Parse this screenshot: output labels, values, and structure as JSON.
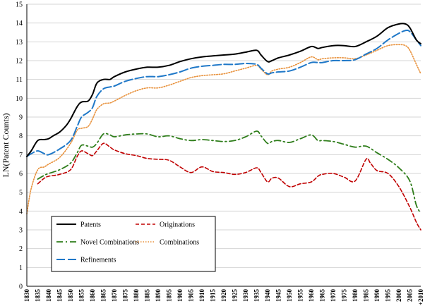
{
  "chart_data": {
    "type": "line",
    "title": "",
    "xlabel": "",
    "ylabel": "LN(Patent Counts)",
    "ylim": [
      0,
      15
    ],
    "yticks": [
      0,
      1,
      2,
      3,
      4,
      5,
      6,
      7,
      8,
      9,
      10,
      11,
      12,
      13,
      14,
      15
    ],
    "xlim": [
      1830,
      2010
    ],
    "xtick_labels": [
      "1830",
      "1835",
      "1840",
      "1845",
      "1850",
      "1855",
      "1860",
      "1865",
      "1870",
      "1875",
      "1880",
      "1885",
      "1890",
      "1895",
      "1900",
      "1905",
      "1910",
      "1915",
      "1920",
      "1925",
      "1930",
      "1935",
      "1940",
      "1945",
      "1950",
      "1955",
      "1960",
      "1965",
      "1970",
      "1975",
      "1980",
      "1985",
      "1990",
      "1995",
      "2000",
      "2005",
      "+2010"
    ],
    "grid": "horizontal",
    "legend_placement": "bottom-left",
    "series": [
      {
        "name": "Patents",
        "color": "#000000",
        "dash": "solid",
        "x": [
          1830,
          1832,
          1835,
          1838,
          1840,
          1842,
          1845,
          1848,
          1850,
          1853,
          1855,
          1858,
          1860,
          1862,
          1865,
          1868,
          1870,
          1875,
          1880,
          1885,
          1890,
          1895,
          1900,
          1905,
          1910,
          1915,
          1920,
          1925,
          1930,
          1935,
          1937,
          1940,
          1942,
          1945,
          1950,
          1955,
          1960,
          1963,
          1965,
          1970,
          1975,
          1980,
          1985,
          1990,
          1995,
          2000,
          2003,
          2005,
          2008,
          2010
        ],
        "y": [
          6.9,
          7.2,
          7.75,
          7.8,
          7.85,
          8.0,
          8.2,
          8.55,
          8.9,
          9.55,
          9.8,
          9.85,
          10.2,
          10.8,
          11.0,
          11.0,
          11.15,
          11.4,
          11.55,
          11.65,
          11.65,
          11.75,
          11.95,
          12.1,
          12.2,
          12.25,
          12.3,
          12.35,
          12.45,
          12.55,
          12.3,
          11.95,
          12.0,
          12.15,
          12.3,
          12.5,
          12.75,
          12.65,
          12.7,
          12.8,
          12.8,
          12.75,
          13.0,
          13.3,
          13.75,
          13.95,
          13.95,
          13.75,
          13.1,
          12.9
        ]
      },
      {
        "name": "Originations",
        "color": "#c00000",
        "dash": "dashed",
        "x": [
          1835,
          1838,
          1840,
          1845,
          1850,
          1853,
          1855,
          1858,
          1860,
          1862,
          1865,
          1868,
          1870,
          1875,
          1880,
          1885,
          1890,
          1895,
          1900,
          1905,
          1910,
          1915,
          1920,
          1925,
          1930,
          1935,
          1937,
          1940,
          1942,
          1945,
          1950,
          1955,
          1960,
          1963,
          1965,
          1970,
          1975,
          1980,
          1985,
          1987,
          1990,
          1995,
          2000,
          2005,
          2008,
          2010
        ],
        "y": [
          5.45,
          5.75,
          5.85,
          5.95,
          6.2,
          6.9,
          7.2,
          7.05,
          6.95,
          7.2,
          7.6,
          7.4,
          7.25,
          7.05,
          6.95,
          6.8,
          6.75,
          6.7,
          6.35,
          6.05,
          6.35,
          6.1,
          6.05,
          5.95,
          6.05,
          6.3,
          6.05,
          5.55,
          5.75,
          5.75,
          5.3,
          5.45,
          5.55,
          5.85,
          5.95,
          6.0,
          5.8,
          5.6,
          6.75,
          6.55,
          6.15,
          6.0,
          5.3,
          4.2,
          3.4,
          3.0
        ]
      },
      {
        "name": "Novel Combinations",
        "color": "#2e7d1a",
        "dash": "dashdot",
        "x": [
          1835,
          1838,
          1840,
          1845,
          1850,
          1853,
          1855,
          1858,
          1860,
          1862,
          1865,
          1868,
          1870,
          1875,
          1880,
          1885,
          1890,
          1895,
          1900,
          1905,
          1910,
          1915,
          1920,
          1925,
          1930,
          1935,
          1937,
          1940,
          1942,
          1945,
          1950,
          1955,
          1960,
          1963,
          1965,
          1970,
          1975,
          1980,
          1985,
          1990,
          1995,
          2000,
          2005,
          2008,
          2010
        ],
        "y": [
          5.7,
          5.9,
          6.0,
          6.2,
          6.55,
          7.1,
          7.5,
          7.45,
          7.4,
          7.6,
          8.1,
          8.05,
          7.95,
          8.05,
          8.1,
          8.1,
          7.95,
          8.0,
          7.85,
          7.75,
          7.8,
          7.75,
          7.7,
          7.75,
          7.95,
          8.25,
          8.0,
          7.6,
          7.7,
          7.75,
          7.65,
          7.85,
          8.05,
          7.75,
          7.75,
          7.7,
          7.55,
          7.4,
          7.45,
          7.1,
          6.75,
          6.3,
          5.6,
          4.3,
          3.9
        ]
      },
      {
        "name": "Combinations",
        "color": "#e8913b",
        "dash": "dotted",
        "x": [
          1830,
          1832,
          1835,
          1838,
          1840,
          1845,
          1850,
          1853,
          1855,
          1858,
          1860,
          1862,
          1865,
          1868,
          1870,
          1875,
          1880,
          1885,
          1890,
          1895,
          1900,
          1905,
          1910,
          1915,
          1920,
          1925,
          1930,
          1935,
          1937,
          1940,
          1942,
          1945,
          1950,
          1955,
          1960,
          1963,
          1965,
          1970,
          1975,
          1980,
          1985,
          1990,
          1995,
          2000,
          2003,
          2005,
          2008,
          2010
        ],
        "y": [
          3.85,
          5.2,
          6.2,
          6.35,
          6.5,
          6.85,
          7.6,
          8.3,
          8.4,
          8.5,
          8.9,
          9.4,
          9.7,
          9.75,
          9.85,
          10.15,
          10.4,
          10.55,
          10.55,
          10.7,
          10.9,
          11.1,
          11.2,
          11.25,
          11.3,
          11.45,
          11.6,
          11.75,
          11.55,
          11.25,
          11.45,
          11.55,
          11.65,
          11.9,
          12.2,
          12.05,
          12.1,
          12.15,
          12.15,
          12.1,
          12.3,
          12.55,
          12.8,
          12.85,
          12.8,
          12.55,
          11.8,
          11.3
        ]
      },
      {
        "name": "Refinements",
        "color": "#1f78c8",
        "dash": "longdash",
        "x": [
          1830,
          1832,
          1835,
          1838,
          1840,
          1845,
          1850,
          1853,
          1855,
          1858,
          1860,
          1862,
          1865,
          1868,
          1870,
          1875,
          1880,
          1885,
          1890,
          1895,
          1900,
          1905,
          1910,
          1915,
          1920,
          1925,
          1930,
          1935,
          1937,
          1940,
          1942,
          1945,
          1950,
          1955,
          1960,
          1963,
          1965,
          1970,
          1975,
          1980,
          1985,
          1990,
          1995,
          2000,
          2003,
          2005,
          2008,
          2010
        ],
        "y": [
          6.9,
          7.05,
          7.2,
          7.05,
          7.0,
          7.3,
          7.75,
          8.5,
          9.0,
          9.25,
          9.5,
          10.1,
          10.5,
          10.6,
          10.65,
          10.9,
          11.05,
          11.15,
          11.15,
          11.25,
          11.4,
          11.6,
          11.7,
          11.75,
          11.8,
          11.8,
          11.85,
          11.8,
          11.6,
          11.3,
          11.35,
          11.4,
          11.45,
          11.65,
          11.9,
          11.9,
          11.9,
          12.0,
          12.0,
          12.05,
          12.35,
          12.65,
          13.1,
          13.45,
          13.6,
          13.55,
          13.1,
          12.8
        ]
      }
    ]
  }
}
